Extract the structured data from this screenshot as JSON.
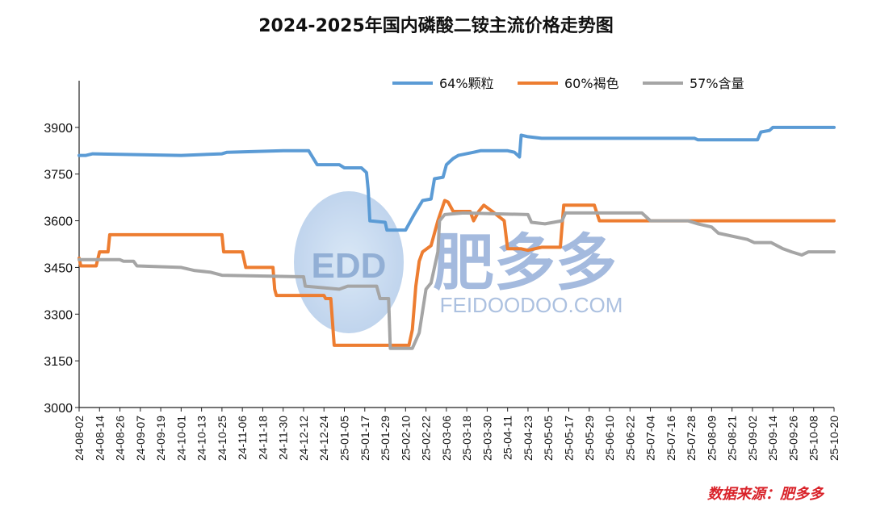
{
  "chart_data": {
    "type": "line",
    "title": "2024-2025年国内磷酸二铵主流价格走势图",
    "xlabel": "",
    "ylabel": "",
    "ylim": [
      3000,
      4050
    ],
    "yticks": [
      3000,
      3150,
      3300,
      3450,
      3600,
      3750,
      3900
    ],
    "x_start": "24-08-02",
    "x_end": "25-10-20",
    "xticks": [
      "24-08-02",
      "24-08-14",
      "24-08-26",
      "24-09-07",
      "24-09-19",
      "24-10-01",
      "24-10-13",
      "24-10-25",
      "24-11-06",
      "24-11-18",
      "24-11-30",
      "24-12-12",
      "24-12-24",
      "25-01-05",
      "25-01-17",
      "25-01-29",
      "25-02-10",
      "25-02-22",
      "25-03-06",
      "25-03-18",
      "25-03-30",
      "25-04-11",
      "25-04-23",
      "25-05-05",
      "25-05-17",
      "25-05-29",
      "25-06-10",
      "25-06-22",
      "25-07-04",
      "25-07-16",
      "25-07-28",
      "25-08-09",
      "25-08-21",
      "25-09-02",
      "25-09-14",
      "25-09-26",
      "25-10-08",
      "25-10-20"
    ],
    "grid": false,
    "legend": "top-center",
    "series": [
      {
        "name": "64%颗粒",
        "color": "#5b9bd5",
        "points": [
          [
            "24-08-02",
            3810
          ],
          [
            "24-08-06",
            3810
          ],
          [
            "24-08-10",
            3815
          ],
          [
            "24-10-01",
            3810
          ],
          [
            "24-10-25",
            3815
          ],
          [
            "24-10-28",
            3820
          ],
          [
            "24-11-30",
            3825
          ],
          [
            "24-12-15",
            3825
          ],
          [
            "24-12-20",
            3780
          ],
          [
            "25-01-02",
            3780
          ],
          [
            "25-01-05",
            3770
          ],
          [
            "25-01-15",
            3770
          ],
          [
            "25-01-18",
            3755
          ],
          [
            "25-01-19",
            3700
          ],
          [
            "25-01-20",
            3600
          ],
          [
            "25-01-29",
            3595
          ],
          [
            "25-01-30",
            3570
          ],
          [
            "25-02-10",
            3570
          ],
          [
            "25-02-15",
            3620
          ],
          [
            "25-02-20",
            3665
          ],
          [
            "25-02-25",
            3670
          ],
          [
            "25-02-27",
            3735
          ],
          [
            "25-03-04",
            3740
          ],
          [
            "25-03-06",
            3780
          ],
          [
            "25-03-10",
            3800
          ],
          [
            "25-03-13",
            3810
          ],
          [
            "25-03-22",
            3820
          ],
          [
            "25-03-26",
            3825
          ],
          [
            "25-04-11",
            3825
          ],
          [
            "25-04-15",
            3820
          ],
          [
            "25-04-18",
            3805
          ],
          [
            "25-04-19",
            3875
          ],
          [
            "25-04-23",
            3870
          ],
          [
            "25-05-01",
            3865
          ],
          [
            "25-07-30",
            3865
          ],
          [
            "25-08-01",
            3860
          ],
          [
            "25-09-05",
            3860
          ],
          [
            "25-09-07",
            3885
          ],
          [
            "25-09-12",
            3890
          ],
          [
            "25-09-14",
            3900
          ],
          [
            "25-10-20",
            3900
          ]
        ]
      },
      {
        "name": "60%褐色",
        "color": "#ed7d31",
        "points": [
          [
            "24-08-02",
            3480
          ],
          [
            "24-08-03",
            3455
          ],
          [
            "24-08-12",
            3455
          ],
          [
            "24-08-14",
            3500
          ],
          [
            "24-08-19",
            3500
          ],
          [
            "24-08-20",
            3555
          ],
          [
            "24-10-25",
            3555
          ],
          [
            "24-10-26",
            3500
          ],
          [
            "24-11-06",
            3500
          ],
          [
            "24-11-08",
            3450
          ],
          [
            "24-11-24",
            3450
          ],
          [
            "24-11-25",
            3380
          ],
          [
            "24-11-26",
            3360
          ],
          [
            "24-12-24",
            3360
          ],
          [
            "24-12-25",
            3350
          ],
          [
            "24-12-28",
            3350
          ],
          [
            "24-12-30",
            3200
          ],
          [
            "25-02-12",
            3200
          ],
          [
            "25-02-14",
            3250
          ],
          [
            "25-02-16",
            3390
          ],
          [
            "25-02-18",
            3470
          ],
          [
            "25-02-20",
            3500
          ],
          [
            "25-02-25",
            3520
          ],
          [
            "25-03-01",
            3600
          ],
          [
            "25-03-05",
            3665
          ],
          [
            "25-03-07",
            3660
          ],
          [
            "25-03-10",
            3630
          ],
          [
            "25-03-20",
            3630
          ],
          [
            "25-03-22",
            3600
          ],
          [
            "25-03-25",
            3630
          ],
          [
            "25-03-28",
            3650
          ],
          [
            "25-04-02",
            3630
          ],
          [
            "25-04-09",
            3600
          ],
          [
            "25-04-11",
            3510
          ],
          [
            "25-04-19",
            3510
          ],
          [
            "25-04-23",
            3505
          ],
          [
            "25-05-01",
            3515
          ],
          [
            "25-05-12",
            3515
          ],
          [
            "25-05-14",
            3650
          ],
          [
            "25-06-01",
            3650
          ],
          [
            "25-06-04",
            3600
          ],
          [
            "25-10-20",
            3600
          ]
        ]
      },
      {
        "name": "57%含量",
        "color": "#a5a5a5",
        "points": [
          [
            "24-08-02",
            3475
          ],
          [
            "24-08-26",
            3475
          ],
          [
            "24-08-28",
            3470
          ],
          [
            "24-09-03",
            3470
          ],
          [
            "24-09-05",
            3455
          ],
          [
            "24-10-01",
            3450
          ],
          [
            "24-10-09",
            3440
          ],
          [
            "24-10-18",
            3435
          ],
          [
            "24-10-25",
            3425
          ],
          [
            "24-12-12",
            3420
          ],
          [
            "24-12-13",
            3390
          ],
          [
            "25-01-02",
            3380
          ],
          [
            "25-01-07",
            3390
          ],
          [
            "25-01-24",
            3390
          ],
          [
            "25-01-26",
            3350
          ],
          [
            "25-01-31",
            3350
          ],
          [
            "25-02-01",
            3190
          ],
          [
            "25-02-14",
            3190
          ],
          [
            "25-02-18",
            3240
          ],
          [
            "25-02-22",
            3380
          ],
          [
            "25-02-25",
            3400
          ],
          [
            "25-03-01",
            3500
          ],
          [
            "25-03-02",
            3600
          ],
          [
            "25-03-05",
            3620
          ],
          [
            "25-03-16",
            3625
          ],
          [
            "25-04-23",
            3620
          ],
          [
            "25-04-25",
            3595
          ],
          [
            "25-05-03",
            3590
          ],
          [
            "25-05-13",
            3600
          ],
          [
            "25-05-15",
            3625
          ],
          [
            "25-05-22",
            3625
          ],
          [
            "25-06-06",
            3625
          ],
          [
            "25-06-10",
            3625
          ],
          [
            "25-06-29",
            3625
          ],
          [
            "25-07-04",
            3600
          ],
          [
            "25-07-26",
            3600
          ],
          [
            "25-08-01",
            3590
          ],
          [
            "25-08-09",
            3580
          ],
          [
            "25-08-13",
            3560
          ],
          [
            "25-08-30",
            3540
          ],
          [
            "25-09-03",
            3530
          ],
          [
            "25-09-13",
            3530
          ],
          [
            "25-09-20",
            3510
          ],
          [
            "25-09-25",
            3500
          ],
          [
            "25-10-01",
            3490
          ],
          [
            "25-10-05",
            3500
          ],
          [
            "25-10-20",
            3500
          ]
        ]
      }
    ]
  },
  "watermark": {
    "logo_text": "EDD",
    "brand_text": "肥多多",
    "domain_text": "FEIDOODOO.COM"
  },
  "source_text": "数据来源：肥多多"
}
